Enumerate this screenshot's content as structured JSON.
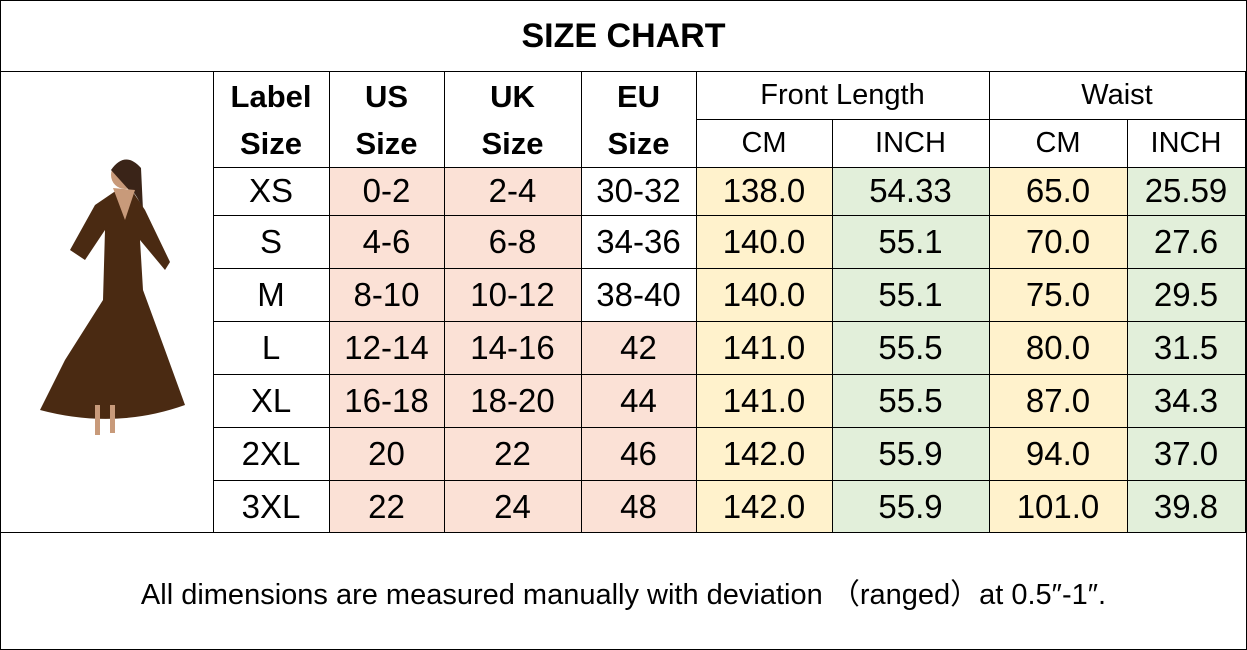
{
  "title": "SIZE CHART",
  "table": {
    "header": [
      [
        "Label",
        "Size"
      ],
      [
        "US",
        "Size"
      ],
      [
        "UK",
        "Size"
      ],
      [
        "EU",
        "Size"
      ]
    ],
    "groups": [
      "Front Length",
      "Waist"
    ],
    "subheaders": [
      "CM",
      "INCH",
      "CM",
      "INCH"
    ],
    "rows": [
      [
        "XS",
        "0-2",
        "2-4",
        "30-32",
        "138.0",
        "54.33",
        "65.0",
        "25.59"
      ],
      [
        "S",
        "4-6",
        "6-8",
        "34-36",
        "140.0",
        "55.1",
        "70.0",
        "27.6"
      ],
      [
        "M",
        "8-10",
        "10-12",
        "38-40",
        "140.0",
        "55.1",
        "75.0",
        "29.5"
      ],
      [
        "L",
        "12-14",
        "14-16",
        "42",
        "141.0",
        "55.5",
        "80.0",
        "31.5"
      ],
      [
        "XL",
        "16-18",
        "18-20",
        "44",
        "141.0",
        "55.5",
        "87.0",
        "34.3"
      ],
      [
        "2XL",
        "20",
        "22",
        "46",
        "142.0",
        "55.9",
        "94.0",
        "37.0"
      ],
      [
        "3XL",
        "22",
        "24",
        "48",
        "142.0",
        "55.9",
        "101.0",
        "39.8"
      ]
    ]
  },
  "note": "All dimensions are measured manually with deviation （ranged）at 0.5″-1″."
}
